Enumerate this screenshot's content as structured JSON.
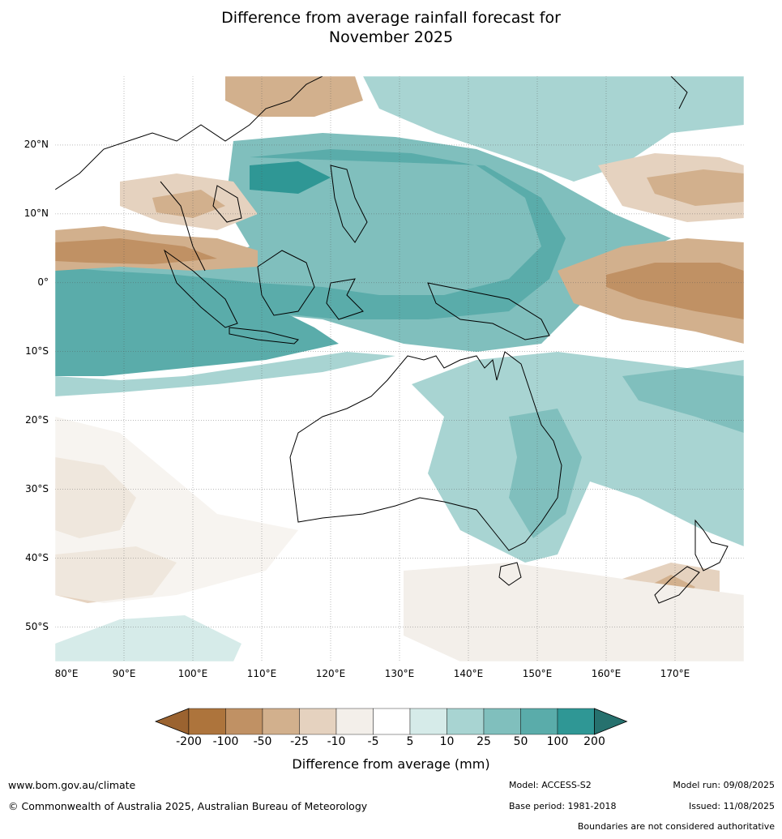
{
  "title_line1": "Difference from average rainfall forecast for",
  "title_line2": "November 2025",
  "axes": {
    "lat_labels": [
      "20°N",
      "10°N",
      "0°",
      "10°S",
      "20°S",
      "30°S",
      "40°S",
      "50°S"
    ],
    "lon_labels": [
      "80°E",
      "90°E",
      "100°E",
      "110°E",
      "120°E",
      "130°E",
      "140°E",
      "150°E",
      "160°E",
      "170°E"
    ],
    "lat_values": [
      20,
      10,
      0,
      -10,
      -20,
      -30,
      -40,
      -50
    ],
    "lon_values": [
      80,
      90,
      100,
      110,
      120,
      130,
      140,
      150,
      160,
      170
    ],
    "lat_range": [
      -55,
      30
    ],
    "lon_range": [
      80,
      180
    ]
  },
  "legend": {
    "title": "Difference from average (mm)",
    "tick_labels": [
      "-200",
      "-100",
      "-50",
      "-25",
      "-10",
      "-5",
      "5",
      "10",
      "25",
      "50",
      "100",
      "200"
    ],
    "colors": [
      "#9b6330",
      "#ad743c",
      "#c09164",
      "#d2b08d",
      "#e5d2bf",
      "#f3efea",
      "#ffffff",
      "#d6ebe9",
      "#a8d4d2",
      "#80bfbd",
      "#5aacaa",
      "#2f9795",
      "#26716e"
    ]
  },
  "footer": {
    "website": "www.bom.gov.au/climate",
    "copyright": "© Commonwealth of Australia 2025, Australian Bureau of Meteorology",
    "model": "Model: ACCESS-S2",
    "base_period": "Base period: 1981-2018",
    "model_run": "Model run: 09/08/2025",
    "issued": "Issued: 11/08/2025",
    "boundaries": "Boundaries are not considered authoritative"
  }
}
